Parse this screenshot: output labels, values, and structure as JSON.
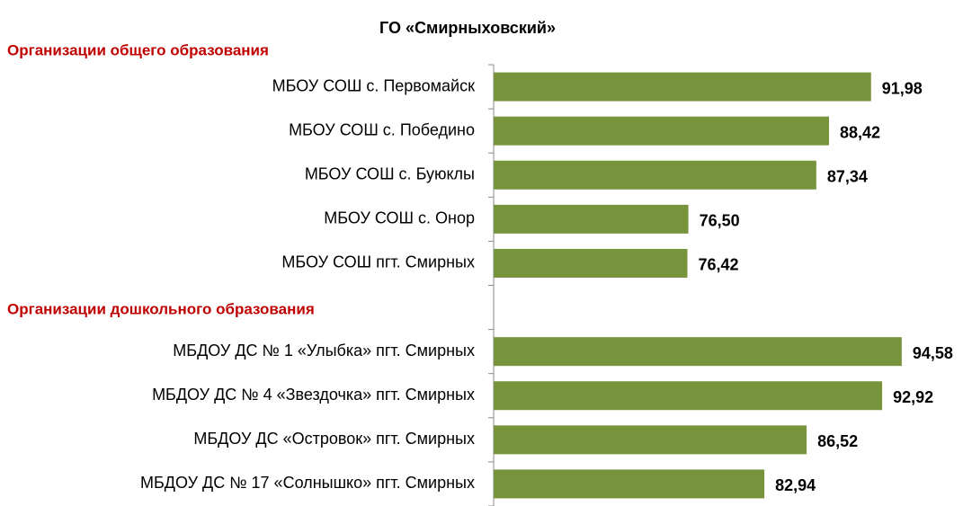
{
  "chart_data": {
    "type": "bar",
    "orientation": "horizontal",
    "title": "ГО «Смирныховский»",
    "annotations": [
      "Организации общего образования",
      "Организации дошкольного образования"
    ],
    "categories": [
      "МБОУ СОШ с. Первомайск",
      "МБОУ СОШ с. Победино",
      "МБОУ СОШ с. Буюклы",
      "МБОУ СОШ с. Онор",
      "МБОУ СОШ пгт. Смирных",
      null,
      "МБДОУ ДС № 1 «Улыбка» пгт. Смирных",
      "МБДОУ ДС № 4 «Звездочка» пгт. Смирных",
      "МБДОУ ДС «Островок» пгт. Смирных",
      "МБДОУ ДС № 17 «Солнышко» пгт. Смирных"
    ],
    "values": [
      91.98,
      88.42,
      87.34,
      76.5,
      76.42,
      null,
      94.58,
      92.92,
      86.52,
      82.94
    ],
    "value_labels": [
      "91,98",
      "88,42",
      "87,34",
      "76,50",
      "76,42",
      null,
      "94,58",
      "92,92",
      "86,52",
      "82,94"
    ],
    "color": "#77933c",
    "xlim": [
      60,
      100
    ]
  }
}
